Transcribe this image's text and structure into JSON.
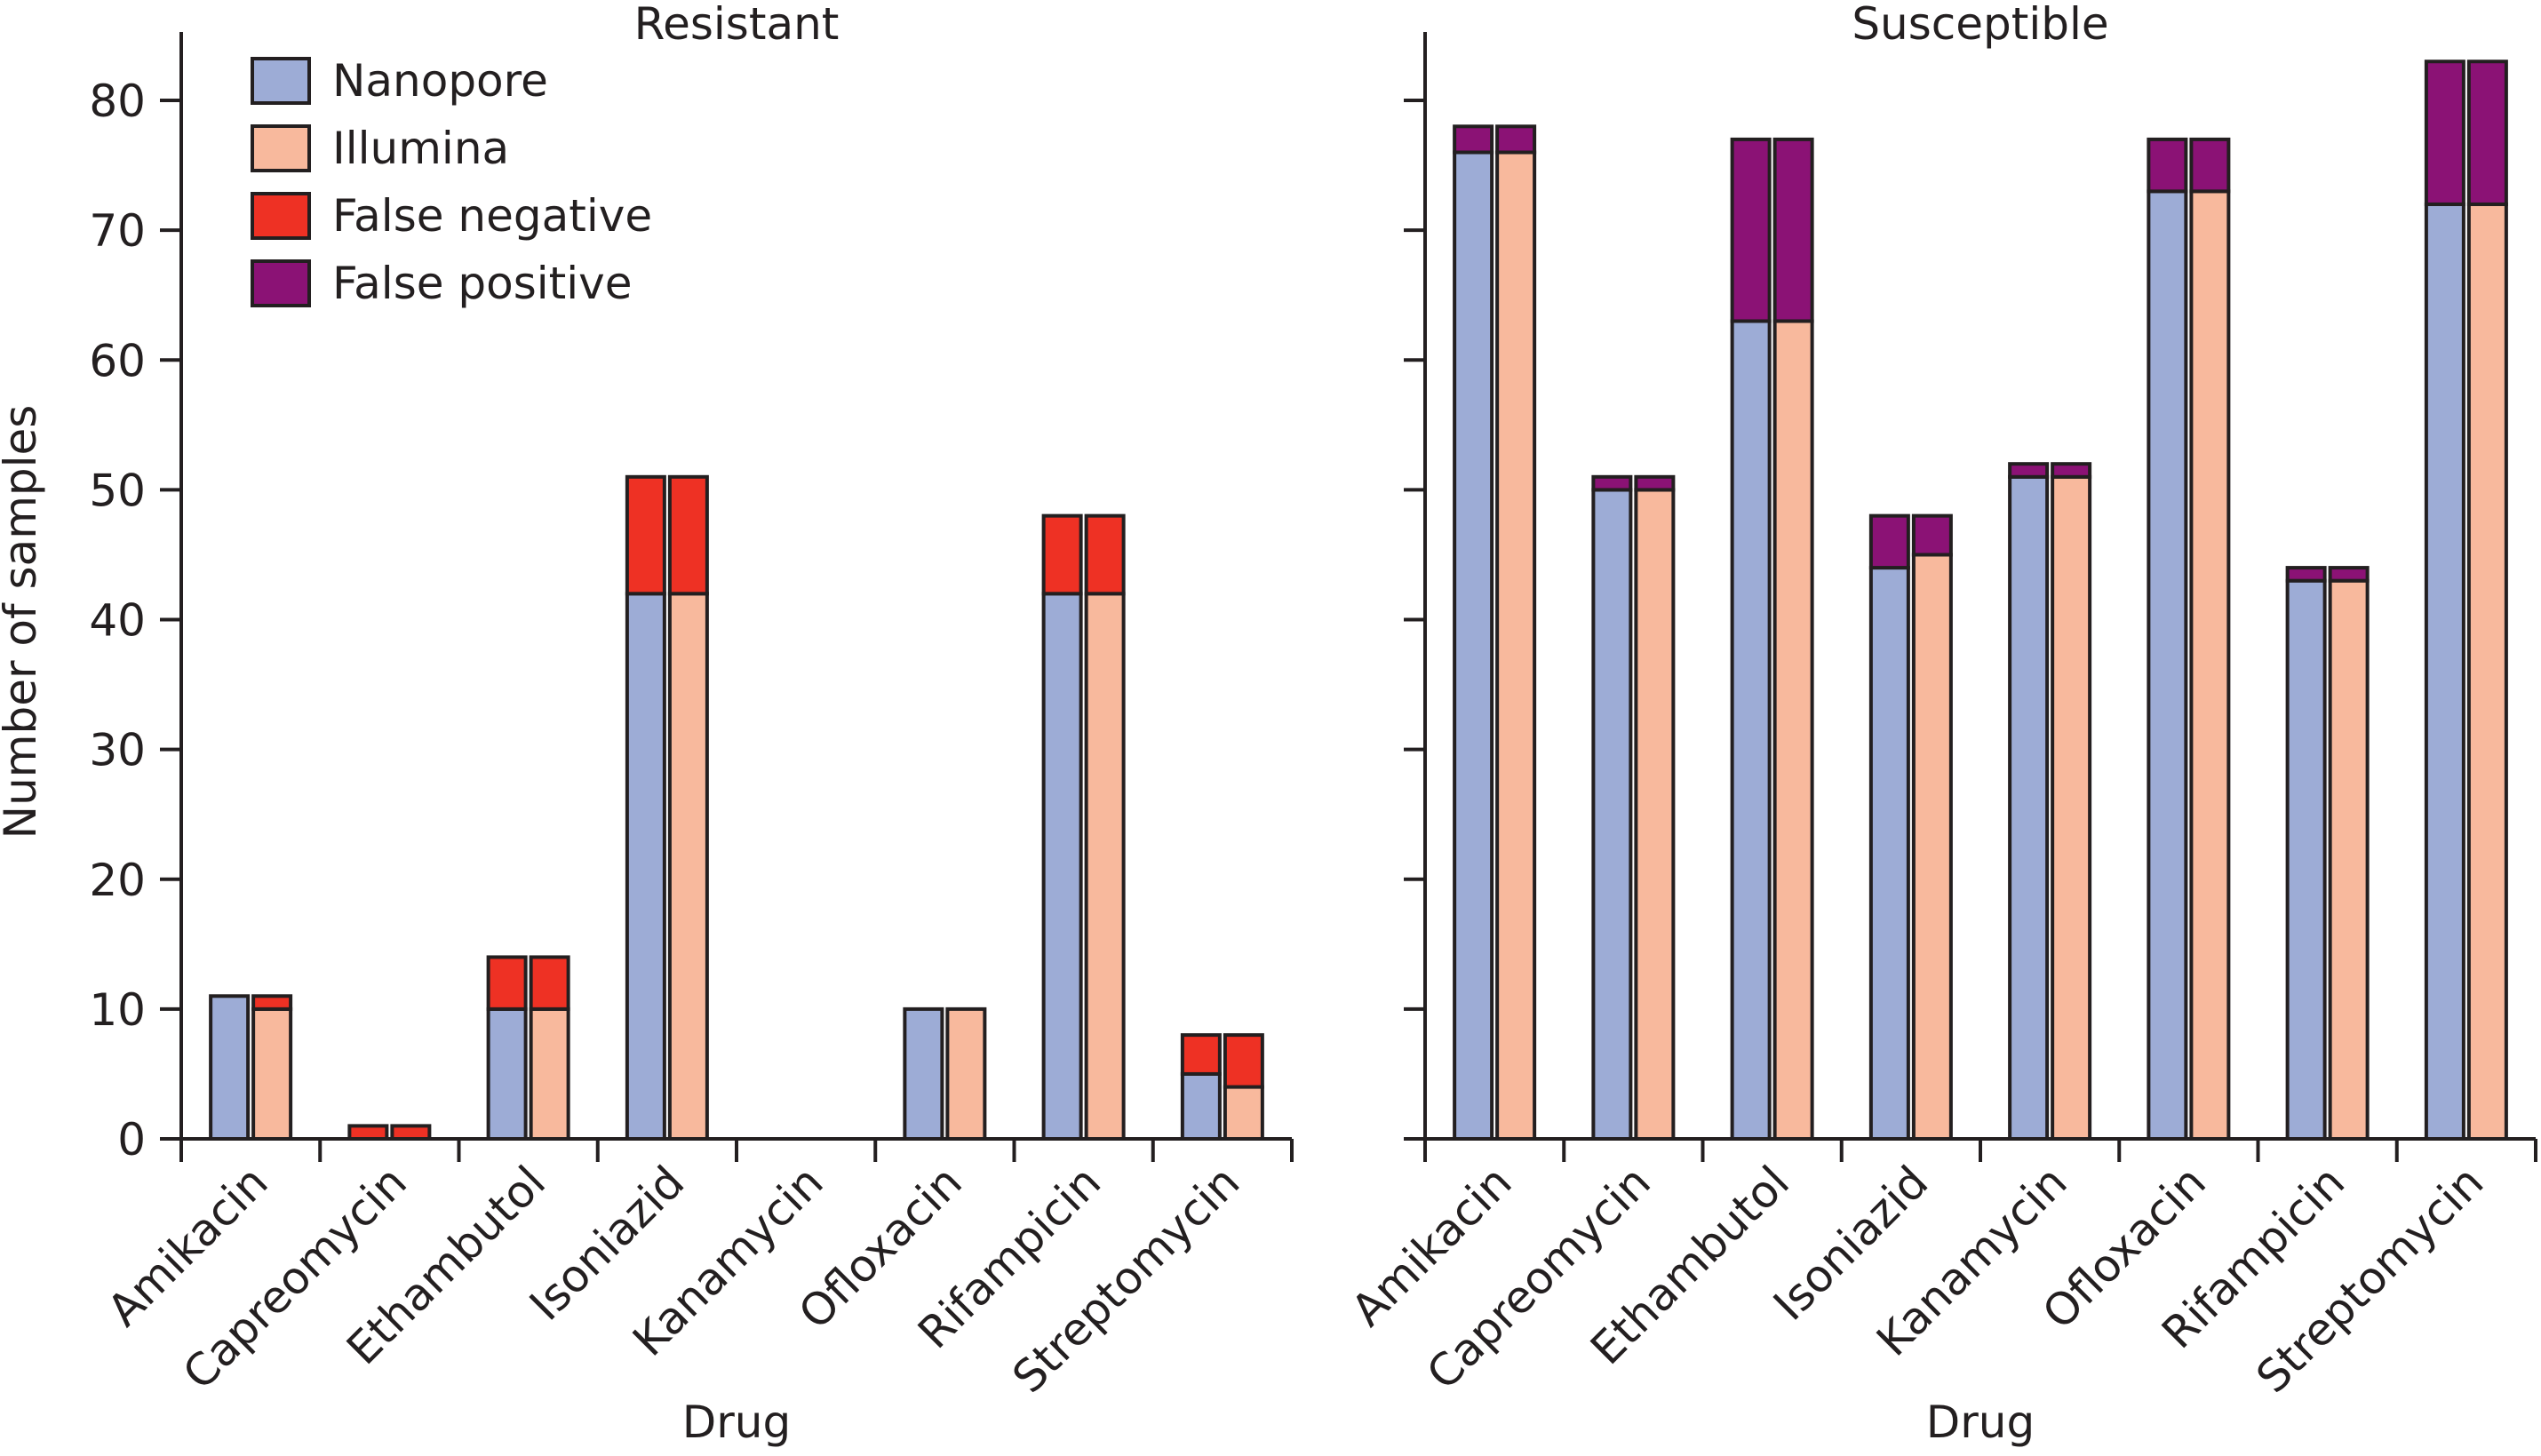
{
  "chart_data": {
    "type": "bar",
    "ylabel": "Number of samples",
    "ylim": [
      0,
      85
    ],
    "yticks": [
      0,
      10,
      20,
      30,
      40,
      50,
      60,
      70,
      80
    ],
    "grid": false,
    "legend": {
      "position": "top-left",
      "entries": [
        {
          "name": "Nanopore",
          "color": "#9dacd6"
        },
        {
          "name": "Illumina",
          "color": "#f8b99d"
        },
        {
          "name": "False negative",
          "color": "#ee3124"
        },
        {
          "name": "False positive",
          "color": "#8b1275"
        }
      ]
    },
    "panels": [
      {
        "title": "Resistant",
        "xlabel": "Drug",
        "categories": [
          "Amikacin",
          "Capreomycin",
          "Ethambutol",
          "Isoniazid",
          "Kanamycin",
          "Ofloxacin",
          "Rifampicin",
          "Streptomycin"
        ],
        "series": [
          {
            "name": "Nanopore",
            "values": [
              11,
              0,
              10,
              42,
              0,
              10,
              42,
              5
            ],
            "false_negative": [
              0,
              1,
              4,
              9,
              0,
              0,
              6,
              3
            ],
            "false_positive": [
              0,
              0,
              0,
              0,
              0,
              0,
              0,
              0
            ]
          },
          {
            "name": "Illumina",
            "values": [
              10,
              0,
              10,
              42,
              0,
              10,
              42,
              4
            ],
            "false_negative": [
              1,
              1,
              4,
              9,
              0,
              0,
              6,
              4
            ],
            "false_positive": [
              0,
              0,
              0,
              0,
              0,
              0,
              0,
              0
            ]
          }
        ]
      },
      {
        "title": "Susceptible",
        "xlabel": "Drug",
        "categories": [
          "Amikacin",
          "Capreomycin",
          "Ethambutol",
          "Isoniazid",
          "Kanamycin",
          "Ofloxacin",
          "Rifampicin",
          "Streptomycin"
        ],
        "series": [
          {
            "name": "Nanopore",
            "values": [
              76,
              50,
              63,
              44,
              51,
              73,
              43,
              72
            ],
            "false_negative": [
              0,
              0,
              0,
              0,
              0,
              0,
              0,
              0
            ],
            "false_positive": [
              2,
              1,
              14,
              4,
              1,
              4,
              1,
              11
            ]
          },
          {
            "name": "Illumina",
            "values": [
              76,
              50,
              63,
              45,
              51,
              73,
              43,
              72
            ],
            "false_negative": [
              0,
              0,
              0,
              0,
              0,
              0,
              0,
              0
            ],
            "false_positive": [
              2,
              1,
              14,
              3,
              1,
              4,
              1,
              11
            ]
          }
        ]
      }
    ]
  }
}
